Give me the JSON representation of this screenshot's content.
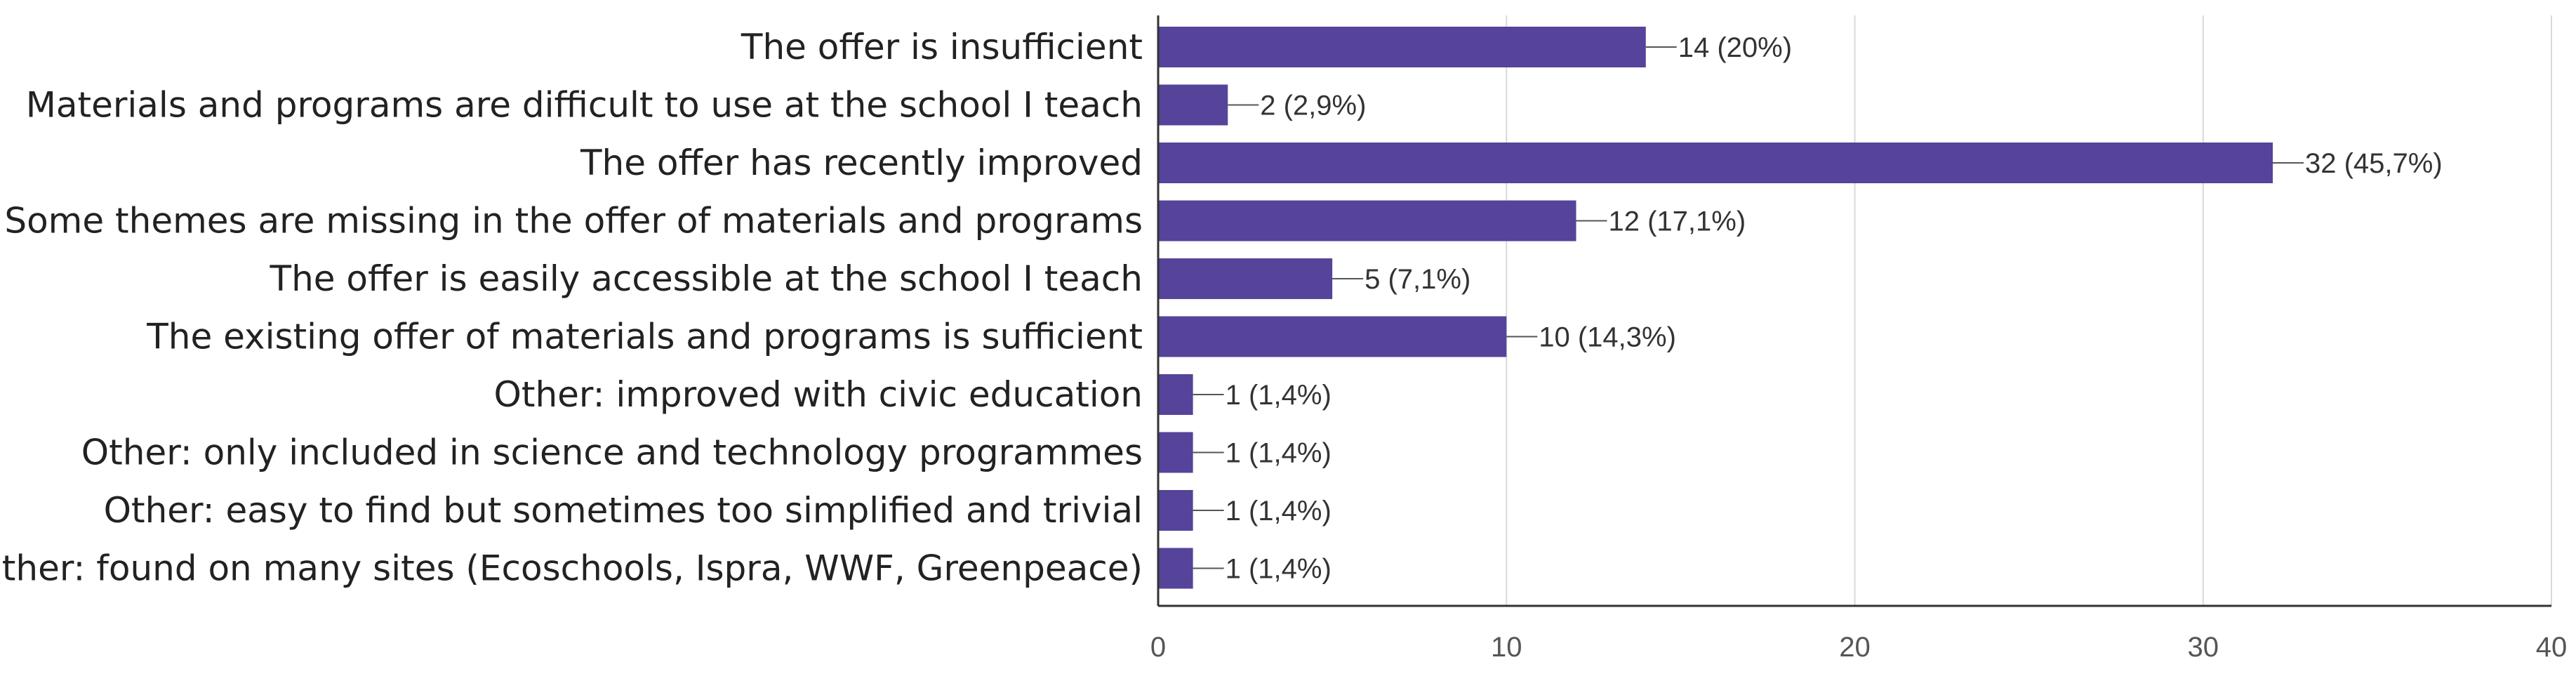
{
  "chart_data": {
    "type": "bar",
    "orientation": "horizontal",
    "title": "",
    "xlabel": "",
    "ylabel": "",
    "categories": [
      "The offer is insufficient",
      "Materials and programs are difficult to use at the school I teach",
      "The offer has recently improved",
      "Some themes are missing in the offer of materials and programs",
      "The offer is easily accessible at the school I teach",
      "The existing offer of materials and programs is sufficient",
      "Other: improved with civic education",
      "Other: only included in science and technology programmes",
      "Other: easy to find but sometimes too simplified and trivial",
      "Other: found on many sites (Ecoschools, Ispra, WWF, Greenpeace)"
    ],
    "values": [
      14,
      2,
      32,
      12,
      5,
      10,
      1,
      1,
      1,
      1
    ],
    "value_labels": [
      "14 (20%)",
      "2 (2,9%)",
      "32 (45,7%)",
      "12 (17,1%)",
      "5 (7,1%)",
      "10 (14,3%)",
      "1 (1,4%)",
      "1 (1,4%)",
      "1 (1,4%)",
      "1 (1,4%)"
    ],
    "xlim": [
      0,
      40
    ],
    "xticks": [
      0,
      10,
      20,
      30,
      40
    ],
    "grid": true,
    "legend": "none",
    "bar_color": "#56439a",
    "grid_color": "#d9d9d9",
    "axis_color": "#333333"
  }
}
